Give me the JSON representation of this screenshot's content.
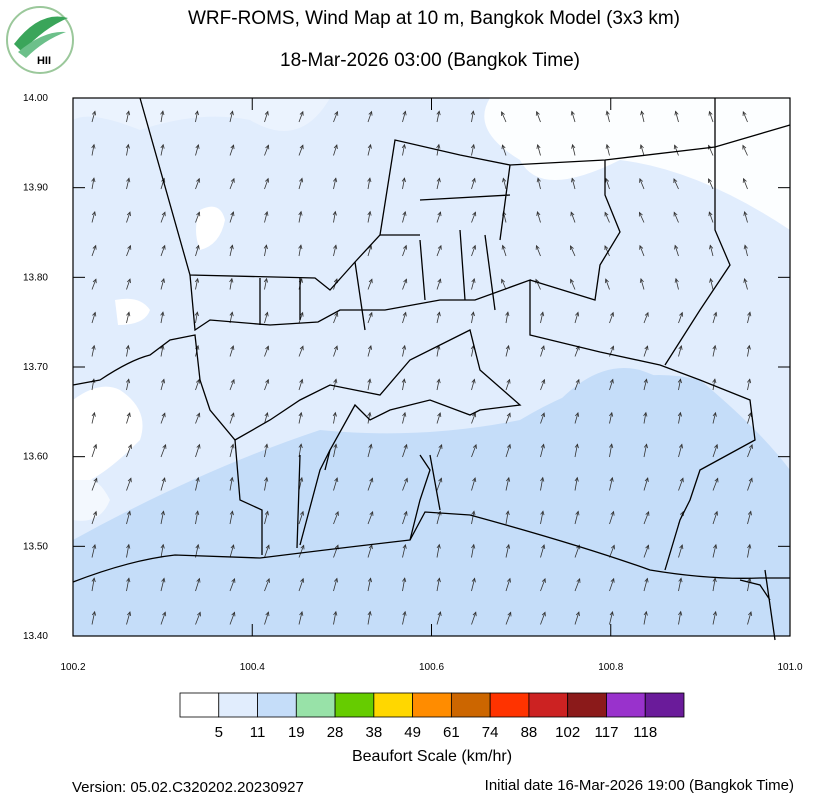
{
  "title": "WRF-ROMS, Wind Map at 10 m, Bangkok Model (3x3 km)",
  "subtitle": "18-Mar-2026 03:00 (Bangkok Time)",
  "logo": {
    "text": "HII"
  },
  "map": {
    "xlim": [
      100.2,
      101.0
    ],
    "ylim": [
      13.4,
      14.0
    ],
    "xticks": [
      100.2,
      100.4,
      100.6,
      100.8,
      {
        "value": 101.0,
        "label": "101.0"
      }
    ],
    "yticks": [
      {
        "value": 13.4,
        "label": "13.40"
      },
      {
        "value": 13.5,
        "label": "13.50"
      },
      {
        "value": 13.6,
        "label": "13.60"
      },
      {
        "value": 13.7,
        "label": "13.70"
      },
      {
        "value": 13.8,
        "label": "13.80"
      },
      {
        "value": 13.9,
        "label": "13.90"
      },
      {
        "value": 14.0,
        "label": "14.00"
      }
    ]
  },
  "colorbar": {
    "colors": [
      "#ffffff",
      "#e1edfd",
      "#c5ddf9",
      "#98e2a8",
      "#66cc00",
      "#ffd700",
      "#ff8c00",
      "#cc6600",
      "#ff3300",
      "#cc2222",
      "#8b1a1a",
      "#9932cc",
      "#6a1b9a"
    ],
    "levels": [
      5,
      11,
      19,
      28,
      38,
      49,
      61,
      74,
      88,
      102,
      117,
      118
    ],
    "label": "Beaufort Scale (km/hr)"
  },
  "footer": {
    "version": "Version: 05.02.C320202.20230927",
    "initial": "Initial date 16-Mar-2026 19:00 (Bangkok Time)"
  }
}
